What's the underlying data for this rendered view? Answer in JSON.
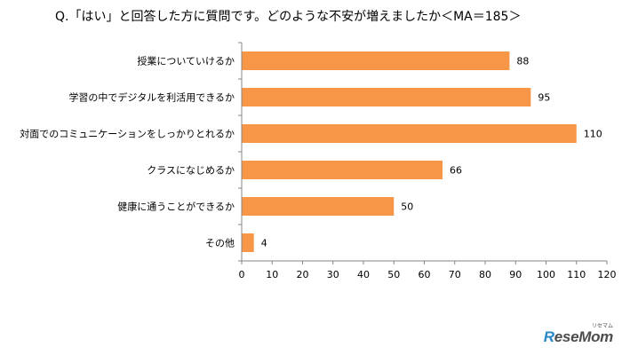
{
  "chart_data": {
    "type": "bar",
    "orientation": "horizontal",
    "title": "Q.「はい」と回答した方に質問です。どのような不安が増えましたか＜MA＝185＞",
    "categories": [
      "授業についていけるか",
      "学習の中でデジタルを利活用できるか",
      "対面でのコミュニケーションをしっかりとれるか",
      "クラスになじめるか",
      "健康に通うことができるか",
      "その他"
    ],
    "values": [
      88,
      95,
      110,
      66,
      50,
      4
    ],
    "xlim": [
      0,
      120
    ],
    "xticks": [
      0,
      10,
      20,
      30,
      40,
      50,
      60,
      70,
      80,
      90,
      100,
      110,
      120
    ],
    "bar_color": "#f79646",
    "grid": false,
    "data_labels": true
  },
  "watermark": {
    "brand_r": "R",
    "brand_rest": "eseMom",
    "kana": "リセマム"
  }
}
